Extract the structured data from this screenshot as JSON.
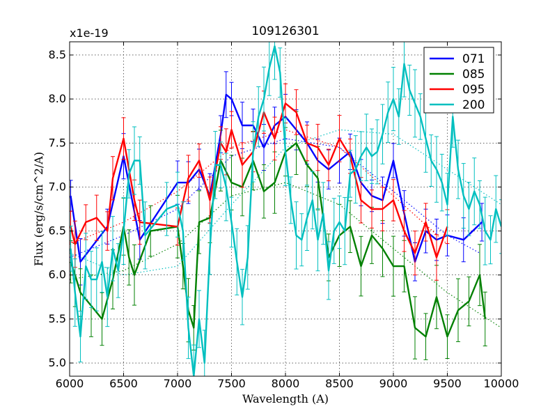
{
  "chart_data": {
    "type": "line",
    "title": "109126301",
    "xlabel": "Wavelength (A)",
    "ylabel": "Flux (erg/s/cm^2/A)",
    "offset_label": "x1e-19",
    "xlim": [
      6000,
      10000
    ],
    "ylim": [
      4.85,
      8.65
    ],
    "xticks": [
      6000,
      6500,
      7000,
      7500,
      8000,
      8500,
      9000,
      9500,
      10000
    ],
    "yticks": [
      5.0,
      5.5,
      6.0,
      6.5,
      7.0,
      7.5,
      8.0,
      8.5
    ],
    "grid": true,
    "legend_position": "top-right",
    "series": [
      {
        "name": "071",
        "color": "#0000ff",
        "x": [
          6010,
          6100,
          6350,
          6500,
          6650,
          7000,
          7100,
          7200,
          7300,
          7400,
          7450,
          7500,
          7600,
          7700,
          7800,
          7900,
          8000,
          8100,
          8200,
          8300,
          8400,
          8500,
          8600,
          8700,
          8800,
          8900,
          9000,
          9100,
          9200,
          9300,
          9400,
          9500,
          9650,
          9820
        ],
        "y": [
          6.9,
          6.15,
          6.55,
          7.35,
          6.4,
          7.05,
          7.05,
          7.2,
          6.9,
          7.6,
          8.05,
          8.0,
          7.7,
          7.7,
          7.45,
          7.7,
          7.8,
          7.65,
          7.5,
          7.3,
          7.2,
          7.3,
          7.4,
          7.05,
          6.9,
          6.85,
          7.3,
          6.7,
          6.15,
          6.5,
          6.4,
          6.45,
          6.4,
          6.6
        ],
        "err": 0.22
      },
      {
        "name": "085",
        "color": "#008000",
        "x": [
          6010,
          6050,
          6100,
          6200,
          6300,
          6400,
          6500,
          6550,
          6600,
          6750,
          7000,
          7050,
          7100,
          7150,
          7200,
          7300,
          7400,
          7500,
          7600,
          7700,
          7800,
          7900,
          8000,
          8100,
          8200,
          8300,
          8400,
          8500,
          8600,
          8700,
          8800,
          8900,
          9000,
          9100,
          9200,
          9300,
          9400,
          9500,
          9600,
          9700,
          9800,
          9850
        ],
        "y": [
          6.15,
          6.0,
          5.8,
          5.65,
          5.5,
          5.95,
          6.55,
          6.2,
          6.0,
          6.5,
          6.55,
          6.1,
          5.6,
          5.4,
          6.6,
          6.65,
          7.3,
          7.05,
          7.0,
          7.3,
          6.95,
          7.05,
          7.4,
          7.5,
          7.25,
          7.1,
          6.2,
          6.45,
          6.55,
          6.1,
          6.45,
          6.3,
          6.1,
          6.1,
          5.4,
          5.3,
          5.75,
          5.3,
          5.6,
          5.7,
          6.0,
          5.5
        ],
        "err": 0.3
      },
      {
        "name": "095",
        "color": "#ff0000",
        "x": [
          6010,
          6050,
          6150,
          6250,
          6350,
          6400,
          6500,
          6600,
          6650,
          7000,
          7100,
          7200,
          7300,
          7400,
          7450,
          7500,
          7600,
          7700,
          7800,
          7900,
          8000,
          8100,
          8200,
          8300,
          8400,
          8500,
          8600,
          8700,
          8800,
          8900,
          9000,
          9100,
          9200,
          9300,
          9400,
          9500
        ],
        "y": [
          6.55,
          6.35,
          6.6,
          6.65,
          6.5,
          7.1,
          7.55,
          6.85,
          6.6,
          6.55,
          7.1,
          7.3,
          6.85,
          7.5,
          7.4,
          7.65,
          7.25,
          7.4,
          7.85,
          7.55,
          7.95,
          7.85,
          7.5,
          7.45,
          7.25,
          7.55,
          7.35,
          6.85,
          6.75,
          6.75,
          6.85,
          6.5,
          6.25,
          6.6,
          6.2,
          6.55
        ],
        "err": 0.22
      },
      {
        "name": "200",
        "color": "#00bfbf",
        "x": [
          6010,
          6050,
          6100,
          6150,
          6200,
          6250,
          6300,
          6350,
          6400,
          6450,
          6500,
          6550,
          6600,
          6650,
          6700,
          6900,
          7000,
          7050,
          7100,
          7150,
          7200,
          7250,
          7300,
          7350,
          7400,
          7450,
          7500,
          7550,
          7600,
          7650,
          7700,
          7750,
          7800,
          7850,
          7900,
          7950,
          8000,
          8050,
          8100,
          8150,
          8200,
          8250,
          8300,
          8350,
          8400,
          8450,
          8500,
          8550,
          8600,
          8650,
          8700,
          8750,
          8800,
          8850,
          8900,
          8950,
          9000,
          9050,
          9100,
          9150,
          9200,
          9250,
          9300,
          9350,
          9400,
          9450,
          9500,
          9550,
          9600,
          9650,
          9700,
          9750,
          9800,
          9850,
          9900,
          9950,
          10000
        ],
        "y": [
          6.3,
          5.8,
          5.3,
          6.1,
          5.95,
          5.95,
          6.15,
          5.75,
          6.3,
          6.05,
          6.5,
          7.15,
          7.3,
          7.3,
          6.45,
          6.75,
          6.8,
          6.5,
          5.4,
          4.85,
          5.5,
          5.0,
          6.3,
          7.25,
          7.25,
          7.0,
          6.6,
          6.15,
          5.75,
          6.2,
          7.4,
          7.8,
          8.0,
          8.35,
          8.6,
          8.3,
          7.4,
          6.85,
          6.45,
          6.4,
          6.65,
          6.85,
          6.4,
          6.7,
          6.05,
          6.5,
          6.6,
          6.5,
          7.15,
          7.2,
          7.35,
          7.45,
          7.35,
          7.4,
          7.6,
          7.85,
          8.0,
          7.8,
          8.4,
          8.1,
          7.95,
          7.8,
          7.55,
          7.3,
          7.2,
          7.05,
          6.8,
          7.8,
          7.2,
          6.9,
          6.75,
          6.95,
          6.8,
          6.5,
          6.4,
          6.75,
          6.55
        ],
        "err": 0.32
      }
    ],
    "dotted_curves": [
      {
        "color": "#0000ff",
        "x": [
          6000,
          6500,
          7000,
          7500,
          8000,
          8500,
          9000,
          9500,
          9800
        ],
        "y": [
          6.2,
          6.45,
          6.75,
          7.35,
          7.55,
          7.45,
          6.95,
          6.45,
          6.25
        ]
      },
      {
        "color": "#008000",
        "x": [
          6000,
          6500,
          7000,
          7500,
          8000,
          8500,
          9000,
          9500,
          10000
        ],
        "y": [
          5.95,
          6.05,
          6.35,
          6.9,
          7.05,
          6.8,
          6.3,
          5.8,
          5.4
        ]
      },
      {
        "color": "#ff0000",
        "x": [
          6000,
          6500,
          7000,
          7500,
          8000,
          8500,
          9000,
          9500
        ],
        "y": [
          6.35,
          6.6,
          6.95,
          7.45,
          7.65,
          7.45,
          6.9,
          6.35
        ]
      },
      {
        "color": "#00bfbf",
        "x": [
          6000,
          6500,
          7000,
          7500,
          8000,
          8500,
          9000,
          9500,
          10000
        ],
        "y": [
          6.25,
          6.0,
          6.1,
          6.8,
          7.45,
          7.65,
          7.6,
          7.2,
          6.8
        ]
      }
    ]
  }
}
